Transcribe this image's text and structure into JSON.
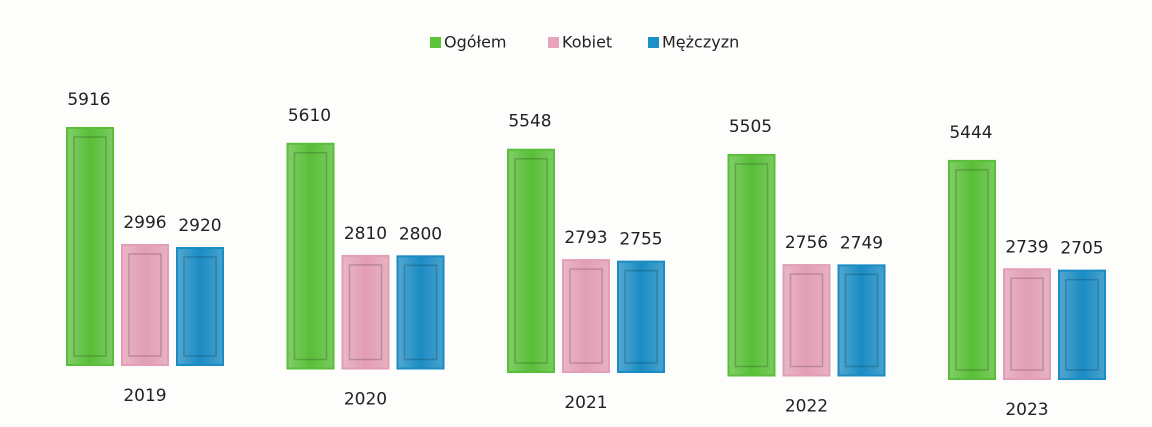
{
  "chart_data": {
    "type": "bar",
    "categories": [
      "2019",
      "2020",
      "2021",
      "2022",
      "2023"
    ],
    "series": [
      {
        "name": "Ogółem",
        "color": "#5cc43a",
        "values": [
          5916,
          5610,
          5548,
          5505,
          5444
        ]
      },
      {
        "name": "Kobiet",
        "color": "#e9a3bb",
        "values": [
          2996,
          2810,
          2793,
          2756,
          2739
        ]
      },
      {
        "name": "Mężczyzn",
        "color": "#1b90c9",
        "values": [
          2920,
          2800,
          2755,
          2749,
          2705
        ]
      }
    ],
    "legend": "top"
  }
}
